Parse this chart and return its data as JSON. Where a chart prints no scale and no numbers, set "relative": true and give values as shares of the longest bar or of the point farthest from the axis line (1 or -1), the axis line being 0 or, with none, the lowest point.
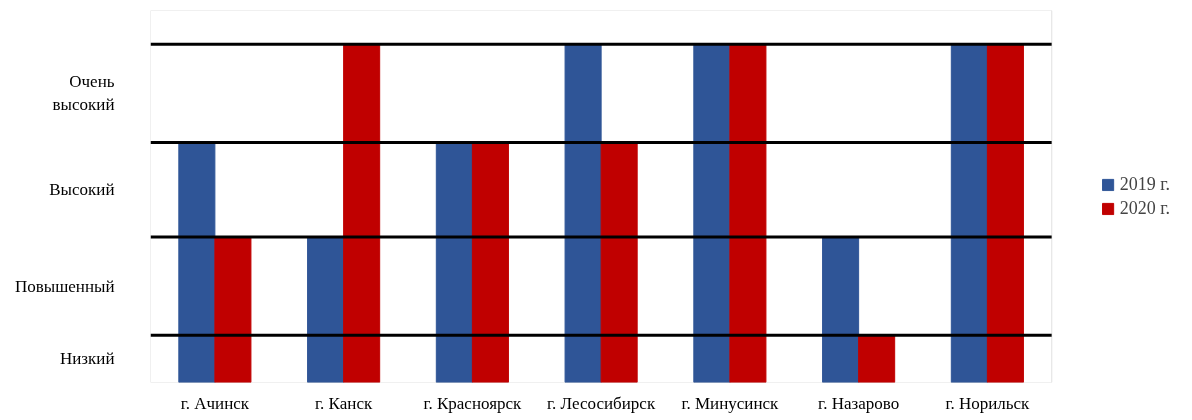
{
  "chart_data": {
    "type": "bar",
    "categories": [
      "г. Ачинск",
      "г. Канск",
      "г. Красноярск",
      "г. Лесосибирск",
      "г. Минусинск",
      "г. Назарово",
      "г. Норильск"
    ],
    "relative": true,
    "series": [
      {
        "name": "2019 г.",
        "color": "#2f5597",
        "values": [
          0.71,
          0.43,
          0.71,
          1,
          1,
          0.43,
          1
        ]
      },
      {
        "name": "2020 г.",
        "color": "#c00000",
        "values": [
          0.43,
          1,
          0.71,
          0.71,
          1,
          0.14,
          1
        ]
      }
    ],
    "ref_lines": [
      {
        "axis": "y",
        "value": 0.14,
        "color": "#000000"
      },
      {
        "axis": "y",
        "value": 0.43,
        "color": "#000000"
      },
      {
        "axis": "y",
        "value": 0.71,
        "color": "#000000"
      },
      {
        "axis": "y",
        "value": 1,
        "color": "#000000"
      }
    ],
    "annotations": [
      "Низкий",
      "Повышенный",
      "Высокий",
      "Очень\nвысокий"
    ],
    "legend": "right"
  }
}
